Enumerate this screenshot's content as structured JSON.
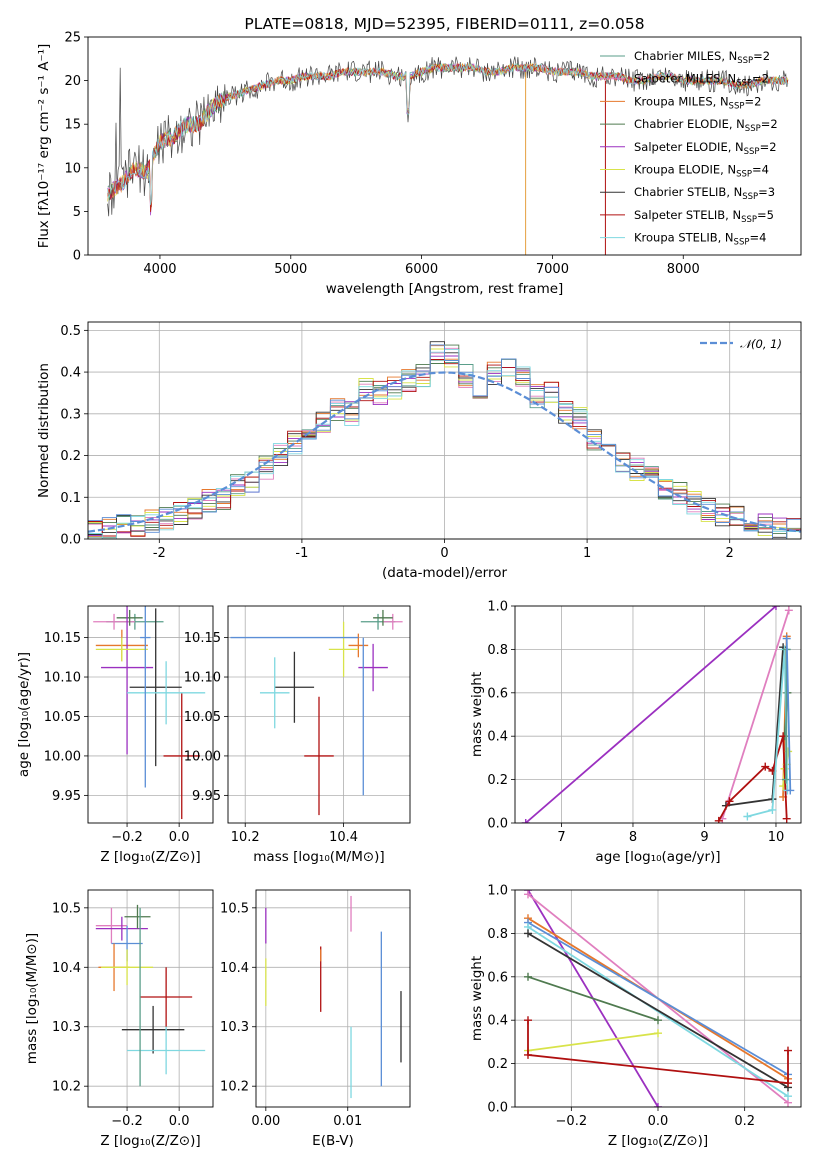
{
  "chart_data": [
    {
      "type": "line",
      "title": "PLATE=0818, MJD=52395, FIBERID=0111, z=0.058",
      "xlabel": "wavelength [Angstrom, rest frame]",
      "ylabel": "Flux [fλ10⁻¹⁷ erg cm⁻² s⁻¹ A⁻¹]",
      "xlim": [
        3450,
        8900
      ],
      "ylim": [
        0,
        25
      ],
      "xticks": [
        4000,
        5000,
        6000,
        7000,
        8000
      ],
      "yticks": [
        0,
        5,
        10,
        15,
        20,
        25
      ],
      "grid": false,
      "legend_position": "top-right",
      "series": [
        {
          "name": "Chabrier MILES, N_SSP=2",
          "color": "#5a9e8a"
        },
        {
          "name": "Salpeter MILES, N_SSP=2",
          "color": "#e07fbf"
        },
        {
          "name": "Kroupa MILES, N_SSP=2",
          "color": "#e6782d"
        },
        {
          "name": "Chabrier ELODIE, N_SSP=2",
          "color": "#4f7a4f"
        },
        {
          "name": "Salpeter ELODIE, N_SSP=2",
          "color": "#9b30c0"
        },
        {
          "name": "Kroupa ELODIE, N_SSP=4",
          "color": "#d8e34a"
        },
        {
          "name": "Chabrier STELIB, N_SSP=3",
          "color": "#333333"
        },
        {
          "name": "Salpeter STELIB, N_SSP=5",
          "color": "#b01010"
        },
        {
          "name": "Kroupa STELIB, N_SSP=4",
          "color": "#7fd8e0"
        }
      ],
      "spectrum": {
        "x": [
          3600,
          3700,
          3800,
          3900,
          4000,
          4100,
          4200,
          4300,
          4400,
          4500,
          4600,
          4700,
          4800,
          4900,
          5000,
          5100,
          5200,
          5300,
          5400,
          5500,
          5600,
          5700,
          5800,
          5900,
          6000,
          6100,
          6200,
          6300,
          6400,
          6500,
          6600,
          6700,
          6800,
          6900,
          7000,
          7100,
          7200,
          7300,
          7400,
          7500,
          7600,
          7700,
          7800,
          7900,
          8000,
          8100,
          8200,
          8300,
          8400,
          8500,
          8600,
          8700,
          8800
        ],
        "y": [
          7,
          8,
          10,
          9.5,
          13,
          13.5,
          15,
          15,
          17,
          18,
          18.5,
          19,
          19.5,
          20,
          20,
          20.5,
          20.5,
          20.5,
          21,
          21,
          21,
          21,
          20.5,
          20.5,
          21,
          21.5,
          21.5,
          21.5,
          21.5,
          21,
          21,
          21.5,
          21.5,
          21.5,
          21,
          21,
          21,
          20.5,
          20.5,
          20.5,
          20,
          20,
          20.5,
          20.5,
          20,
          20,
          20,
          20,
          19.5,
          19.5,
          20,
          20,
          20
        ]
      }
    },
    {
      "type": "line",
      "xlabel": "(data-model)/error",
      "ylabel": "Normed distribution",
      "xlim": [
        -2.5,
        2.5
      ],
      "ylim": [
        0,
        0.52
      ],
      "xticks": [
        -2,
        -1,
        0,
        1,
        2
      ],
      "yticks": [
        0.0,
        0.1,
        0.2,
        0.3,
        0.4,
        0.5
      ],
      "grid": true,
      "legend_position": "top-right",
      "series": [
        {
          "name": "N(0,1)",
          "label_tex": "𝒩(0, 1)",
          "color": "#5b8ed6",
          "style": "dashed"
        }
      ],
      "histogram_bins": [
        -2.5,
        -2.4,
        -2.3,
        -2.2,
        -2.1,
        -2.0,
        -1.9,
        -1.8,
        -1.7,
        -1.6,
        -1.5,
        -1.4,
        -1.3,
        -1.2,
        -1.1,
        -1.0,
        -0.9,
        -0.8,
        -0.7,
        -0.6,
        -0.5,
        -0.4,
        -0.3,
        -0.2,
        -0.1,
        0.0,
        0.1,
        0.2,
        0.3,
        0.4,
        0.5,
        0.6,
        0.7,
        0.8,
        0.9,
        1.0,
        1.1,
        1.2,
        1.3,
        1.4,
        1.5,
        1.6,
        1.7,
        1.8,
        1.9,
        2.0,
        2.1,
        2.2,
        2.3,
        2.4,
        2.5
      ],
      "histogram_values": [
        0.02,
        0.025,
        0.03,
        0.035,
        0.04,
        0.05,
        0.06,
        0.07,
        0.09,
        0.1,
        0.13,
        0.14,
        0.17,
        0.2,
        0.23,
        0.24,
        0.28,
        0.31,
        0.3,
        0.36,
        0.35,
        0.36,
        0.38,
        0.39,
        0.45,
        0.44,
        0.39,
        0.36,
        0.4,
        0.41,
        0.39,
        0.34,
        0.35,
        0.3,
        0.29,
        0.24,
        0.22,
        0.19,
        0.17,
        0.15,
        0.12,
        0.11,
        0.09,
        0.07,
        0.06,
        0.05,
        0.04,
        0.035,
        0.025,
        0.02
      ]
    },
    {
      "type": "scatter",
      "xlabel": "Z [log₁₀(Z/Z⊙)]",
      "ylabel": "age  [log₁₀(age/yr)]",
      "xlim": [
        -0.35,
        0.13
      ],
      "ylim": [
        9.915,
        10.19
      ],
      "xticks": [
        -0.2,
        0.0
      ],
      "xtick_labels": [
        "−0.2",
        "0.0"
      ],
      "yticks": [
        9.95,
        10.0,
        10.05,
        10.1,
        10.15
      ],
      "yticks_labels": [
        "9.95",
        "10.00",
        "10.05",
        "10.10",
        "10.15"
      ],
      "grid": true,
      "points": [
        {
          "x": -0.17,
          "y": 10.17,
          "ex": 0.11,
          "ey": 0.01,
          "color": "#5a9e8a"
        },
        {
          "x": -0.25,
          "y": 10.17,
          "ex": 0.08,
          "ey": 0.01,
          "color": "#e07fbf"
        },
        {
          "x": -0.22,
          "y": 10.14,
          "ex": 0.1,
          "ey": 0.02,
          "color": "#e6782d"
        },
        {
          "x": -0.19,
          "y": 10.175,
          "ex": 0.05,
          "ey": 0.01,
          "color": "#4f7a4f"
        },
        {
          "x": -0.2,
          "y": 10.112,
          "ex": 0.1,
          "ey": 0.11,
          "color": "#9b30c0"
        },
        {
          "x": -0.22,
          "y": 10.135,
          "ex": 0.1,
          "ey": 0.015,
          "color": "#d8e34a"
        },
        {
          "x": -0.09,
          "y": 10.087,
          "ex": 0.1,
          "ey": 0.1,
          "color": "#333333"
        },
        {
          "x": 0.01,
          "y": 10.0,
          "ex": 0.07,
          "ey": 0.08,
          "color": "#b01010"
        },
        {
          "x": -0.05,
          "y": 10.08,
          "ex": 0.15,
          "ey": 0.04,
          "color": "#7fd8e0"
        },
        {
          "x": -0.13,
          "y": 10.15,
          "ex": 0.02,
          "ey": 0.19,
          "color": "#5b8ed6"
        }
      ]
    },
    {
      "type": "scatter",
      "xlabel": "mass [log₁₀(M/M⊙)]",
      "ylabel": "",
      "xlim": [
        10.165,
        10.535
      ],
      "ylim": [
        9.915,
        10.19
      ],
      "xticks": [
        10.2,
        10.4
      ],
      "yticks": [
        9.95,
        10.0,
        10.05,
        10.1,
        10.15
      ],
      "yticks_labels": [
        "9.95",
        "10.00",
        "10.05",
        "10.10",
        "10.15"
      ],
      "grid": true,
      "points": [
        {
          "x": 10.47,
          "y": 10.17,
          "ex": 0.035,
          "ey": 0.01,
          "color": "#5a9e8a"
        },
        {
          "x": 10.5,
          "y": 10.17,
          "ex": 0.02,
          "ey": 0.01,
          "color": "#e07fbf"
        },
        {
          "x": 10.43,
          "y": 10.14,
          "ex": 0.02,
          "ey": 0.015,
          "color": "#e6782d"
        },
        {
          "x": 10.48,
          "y": 10.175,
          "ex": 0.02,
          "ey": 0.01,
          "color": "#4f7a4f"
        },
        {
          "x": 10.46,
          "y": 10.112,
          "ex": 0.03,
          "ey": 0.03,
          "color": "#9b30c0"
        },
        {
          "x": 10.4,
          "y": 10.135,
          "ex": 0.03,
          "ey": 0.035,
          "color": "#d8e34a"
        },
        {
          "x": 10.3,
          "y": 10.087,
          "ex": 0.04,
          "ey": 0.045,
          "color": "#333333"
        },
        {
          "x": 10.35,
          "y": 10.0,
          "ex": 0.03,
          "ey": 0.075,
          "color": "#b01010"
        },
        {
          "x": 10.26,
          "y": 10.08,
          "ex": 0.03,
          "ey": 0.045,
          "color": "#7fd8e0"
        },
        {
          "x": 10.3,
          "y": 10.15,
          "ex": 0.13,
          "ey": 0.0,
          "color": "#5b8ed6"
        },
        {
          "x": 10.44,
          "y": 10.05,
          "ex": 0.0,
          "ey": 0.1,
          "color": "#5b8ed6"
        }
      ]
    },
    {
      "type": "line",
      "xlabel": "age  [log₁₀(age/yr)]",
      "ylabel": "mass weight",
      "xlim": [
        6.35,
        10.35
      ],
      "ylim": [
        0,
        1.0
      ],
      "xticks": [
        7,
        8,
        9,
        10
      ],
      "yticks": [
        0.0,
        0.2,
        0.4,
        0.6,
        0.8,
        1.0
      ],
      "grid": true,
      "series": [
        {
          "name": "Salpeter ELODIE",
          "color": "#9b30c0",
          "x": [
            6.5,
            10.0
          ],
          "y": [
            0.0,
            1.0
          ]
        },
        {
          "name": "Salpeter MILES",
          "color": "#e07fbf",
          "x": [
            9.25,
            10.18
          ],
          "y": [
            0.02,
            0.98
          ]
        },
        {
          "name": "Kroupa MILES",
          "color": "#e6782d",
          "x": [
            10.1,
            10.15
          ],
          "y": [
            0.12,
            0.86
          ]
        },
        {
          "name": "Chabrier ELODIE",
          "color": "#4f7a4f",
          "x": [
            10.12,
            10.16
          ],
          "y": [
            0.4,
            0.6
          ]
        },
        {
          "name": "Kroupa ELODIE",
          "color": "#d8e34a",
          "x": [
            10.1,
            10.12,
            10.15,
            10.17
          ],
          "y": [
            0.17,
            0.25,
            0.27,
            0.33
          ]
        },
        {
          "name": "Chabrier STELIB",
          "color": "#333333",
          "x": [
            9.3,
            9.95,
            10.1
          ],
          "y": [
            0.08,
            0.11,
            0.81
          ]
        },
        {
          "name": "Salpeter STELIB",
          "color": "#b01010",
          "x": [
            9.2,
            9.35,
            9.85,
            9.95,
            10.1,
            10.15
          ],
          "y": [
            0.01,
            0.1,
            0.26,
            0.24,
            0.4,
            0.02
          ]
        },
        {
          "name": "Kroupa STELIB",
          "color": "#7fd8e0",
          "x": [
            9.6,
            9.95,
            10.12,
            10.16
          ],
          "y": [
            0.03,
            0.06,
            0.8,
            0.15
          ]
        },
        {
          "name": "Chabrier MILES",
          "color": "#5a9e8a",
          "x": [
            10.14,
            10.15
          ],
          "y": [
            0.2,
            0.8
          ]
        },
        {
          "name": "Kroupa STELIB b",
          "color": "#5b8ed6",
          "x": [
            10.15,
            10.2
          ],
          "y": [
            0.85,
            0.15
          ]
        }
      ]
    },
    {
      "type": "scatter",
      "xlabel": "Z [log₁₀(Z/Z⊙)]",
      "ylabel": "mass [log₁₀(M/M⊙)]",
      "xlim": [
        -0.35,
        0.13
      ],
      "ylim": [
        10.165,
        10.53
      ],
      "xticks": [
        -0.2,
        0.0
      ],
      "xtick_labels": [
        "−0.2",
        "0.0"
      ],
      "yticks": [
        10.2,
        10.3,
        10.4,
        10.5
      ],
      "grid": true,
      "points": [
        {
          "x": -0.26,
          "y": 10.47,
          "ex": 0.06,
          "ey": 0.03,
          "color": "#e07fbf"
        },
        {
          "x": -0.22,
          "y": 10.465,
          "ex": 0.1,
          "ey": 0.02,
          "color": "#9b30c0"
        },
        {
          "x": -0.16,
          "y": 10.485,
          "ex": 0.05,
          "ey": 0.02,
          "color": "#4f7a4f"
        },
        {
          "x": -0.2,
          "y": 10.44,
          "ex": 0.06,
          "ey": 0.03,
          "color": "#5b8ed6"
        },
        {
          "x": -0.25,
          "y": 10.4,
          "ex": 0.06,
          "ey": 0.04,
          "color": "#e6782d"
        },
        {
          "x": -0.2,
          "y": 10.4,
          "ex": 0.1,
          "ey": 0.03,
          "color": "#d8e34a"
        },
        {
          "x": -0.05,
          "y": 10.35,
          "ex": 0.1,
          "ey": 0.05,
          "color": "#b01010"
        },
        {
          "x": -0.1,
          "y": 10.295,
          "ex": 0.12,
          "ey": 0.04,
          "color": "#333333"
        },
        {
          "x": -0.05,
          "y": 10.26,
          "ex": 0.15,
          "ey": 0.04,
          "color": "#7fd8e0"
        },
        {
          "x": -0.15,
          "y": 10.35,
          "ex": 0.0,
          "ey": 0.15,
          "color": "#5a9e8a"
        }
      ]
    },
    {
      "type": "scatter",
      "xlabel": "E(B-V)",
      "ylabel": "",
      "xlim": [
        -0.0012,
        0.0176
      ],
      "ylim": [
        10.165,
        10.53
      ],
      "xticks": [
        0.0,
        0.01
      ],
      "xtick_labels": [
        "0.00",
        "0.01"
      ],
      "yticks": [
        10.2,
        10.3,
        10.4,
        10.5
      ],
      "grid": true,
      "points": [
        {
          "x": 0.0,
          "y": 10.47,
          "ex": 0,
          "ey": 0.03,
          "color": "#9b30c0"
        },
        {
          "x": 0.0,
          "y": 10.375,
          "ex": 0,
          "ey": 0.04,
          "color": "#d8e34a"
        },
        {
          "x": 0.0104,
          "y": 10.49,
          "ex": 0,
          "ey": 0.03,
          "color": "#e07fbf"
        },
        {
          "x": 0.0067,
          "y": 10.38,
          "ex": 0,
          "ey": 0.055,
          "color": "#b01010"
        },
        {
          "x": 0.0067,
          "y": 10.42,
          "ex": 0,
          "ey": 0.01,
          "color": "#e6782d"
        },
        {
          "x": 0.0104,
          "y": 10.24,
          "ex": 0,
          "ey": 0.06,
          "color": "#7fd8e0"
        },
        {
          "x": 0.0141,
          "y": 10.33,
          "ex": 0,
          "ey": 0.13,
          "color": "#5b8ed6"
        },
        {
          "x": 0.0165,
          "y": 10.3,
          "ex": 0,
          "ey": 0.06,
          "color": "#333333"
        }
      ]
    },
    {
      "type": "line",
      "xlabel": "Z [log₁₀(Z/Z⊙)]",
      "ylabel": "mass weight",
      "xlim": [
        -0.33,
        0.33
      ],
      "ylim": [
        0,
        1.0
      ],
      "xticks": [
        -0.2,
        0.0,
        0.2
      ],
      "xtick_labels": [
        "−0.2",
        "0.0",
        "0.2"
      ],
      "yticks": [
        0.0,
        0.2,
        0.4,
        0.6,
        0.8,
        1.0
      ],
      "grid": true,
      "series": [
        {
          "name": "Salpeter ELODIE",
          "color": "#9b30c0",
          "x": [
            -0.3,
            0.0
          ],
          "y": [
            1.0,
            0.0
          ]
        },
        {
          "name": "Salpeter MILES",
          "color": "#e07fbf",
          "x": [
            -0.3,
            0.3
          ],
          "y": [
            0.98,
            0.02
          ]
        },
        {
          "name": "Kroupa MILES",
          "color": "#e6782d",
          "x": [
            -0.3,
            0.3
          ],
          "y": [
            0.87,
            0.13
          ]
        },
        {
          "name": "Chabrier MILES",
          "color": "#5b8ed6",
          "x": [
            -0.3,
            0.3
          ],
          "y": [
            0.85,
            0.15
          ]
        },
        {
          "name": "Kroupa STELIB",
          "color": "#7fd8e0",
          "x": [
            -0.3,
            0.3
          ],
          "y": [
            0.83,
            0.05
          ]
        },
        {
          "name": "Chabrier STELIB",
          "color": "#333333",
          "x": [
            -0.3,
            0.3
          ],
          "y": [
            0.8,
            0.09
          ]
        },
        {
          "name": "Chabrier ELODIE",
          "color": "#4f7a4f",
          "x": [
            -0.3,
            0.0
          ],
          "y": [
            0.6,
            0.4
          ]
        },
        {
          "name": "Kroupa ELODIE",
          "color": "#d8e34a",
          "x": [
            -0.3,
            0.0
          ],
          "y": [
            0.26,
            0.34
          ]
        },
        {
          "name": "Salpeter STELIB",
          "color": "#b01010",
          "x": [
            -0.3,
            -0.3,
            0.3,
            0.3
          ],
          "y": [
            0.4,
            0.24,
            0.11,
            0.26
          ]
        }
      ]
    }
  ]
}
